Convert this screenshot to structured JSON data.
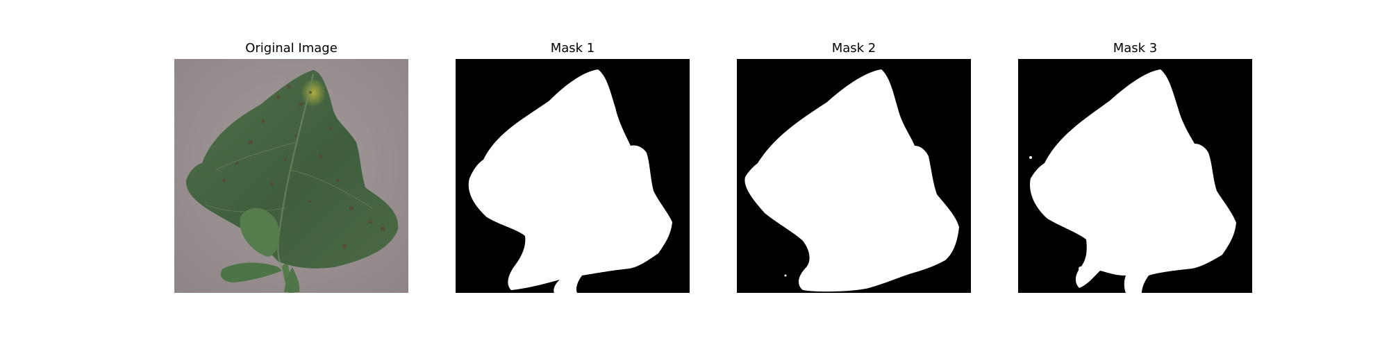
{
  "figure": {
    "panels": [
      {
        "title": "Original Image",
        "kind": "photo"
      },
      {
        "title": "Mask 1",
        "kind": "mask"
      },
      {
        "title": "Mask 2",
        "kind": "mask"
      },
      {
        "title": "Mask 3",
        "kind": "mask"
      }
    ]
  },
  "colors": {
    "background": "#ffffff",
    "photo_ground": "#9a8f90",
    "leaf_dark": "#3d5b3c",
    "leaf_mid": "#4e6e47",
    "leaf_yellow": "#a8a83a",
    "lesion_brown": "#5a4630",
    "mask_background": "#000000",
    "mask_foreground": "#ffffff"
  }
}
